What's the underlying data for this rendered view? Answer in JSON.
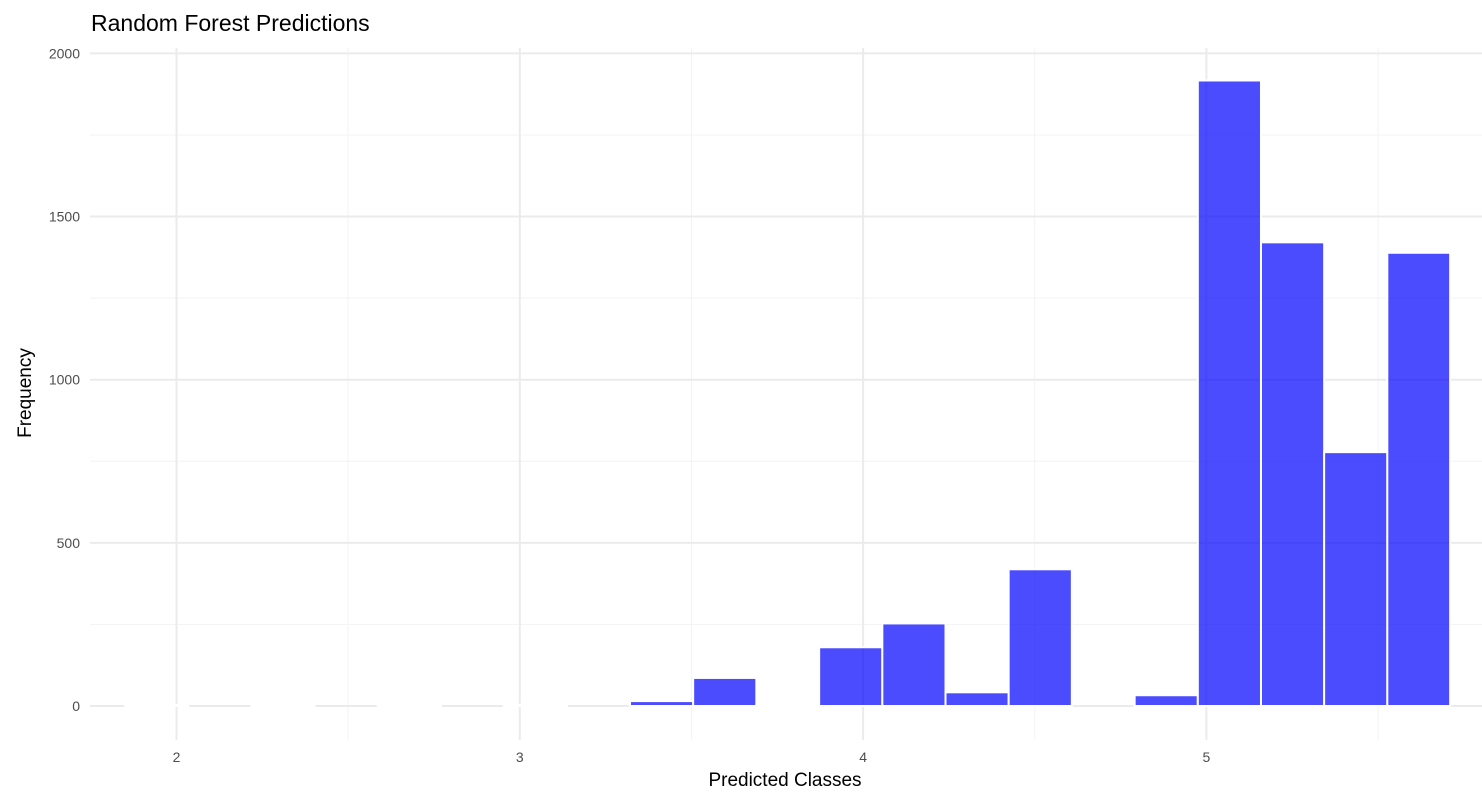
{
  "chart_data": {
    "type": "bar",
    "title": "Random Forest Predictions",
    "xlabel": "Predicted Classes",
    "ylabel": "Frequency",
    "xlim": [
      1.75,
      5.75
    ],
    "ylim": [
      -80,
      2030
    ],
    "x_ticks": [
      "2",
      "3",
      "4",
      "5"
    ],
    "y_ticks": [
      "0",
      "500",
      "1000",
      "1500",
      "2000"
    ],
    "grid": true,
    "bar_color": "#0000FF",
    "bar_opacity": 0.7,
    "bar_border": "#ffffff",
    "bins": [
      {
        "x0": 1.667,
        "x1": 1.851,
        "count": 0
      },
      {
        "x0": 1.851,
        "x1": 2.034,
        "count": 2
      },
      {
        "x0": 2.034,
        "x1": 2.218,
        "count": 0
      },
      {
        "x0": 2.218,
        "x1": 2.402,
        "count": 1
      },
      {
        "x0": 2.402,
        "x1": 2.586,
        "count": 0
      },
      {
        "x0": 2.586,
        "x1": 2.77,
        "count": 1
      },
      {
        "x0": 2.77,
        "x1": 2.953,
        "count": 0
      },
      {
        "x0": 2.953,
        "x1": 3.137,
        "count": 4
      },
      {
        "x0": 3.137,
        "x1": 3.321,
        "count": 0
      },
      {
        "x0": 3.321,
        "x1": 3.505,
        "count": 15
      },
      {
        "x0": 3.505,
        "x1": 3.689,
        "count": 86
      },
      {
        "x0": 3.689,
        "x1": 3.872,
        "count": 4
      },
      {
        "x0": 3.872,
        "x1": 4.056,
        "count": 180
      },
      {
        "x0": 4.056,
        "x1": 4.24,
        "count": 253
      },
      {
        "x0": 4.24,
        "x1": 4.424,
        "count": 42
      },
      {
        "x0": 4.424,
        "x1": 4.608,
        "count": 419
      },
      {
        "x0": 4.608,
        "x1": 4.791,
        "count": 0
      },
      {
        "x0": 4.791,
        "x1": 4.975,
        "count": 33
      },
      {
        "x0": 4.975,
        "x1": 5.159,
        "count": 1917
      },
      {
        "x0": 5.159,
        "x1": 5.343,
        "count": 1421
      },
      {
        "x0": 5.343,
        "x1": 5.527,
        "count": 778
      },
      {
        "x0": 5.527,
        "x1": 5.71,
        "count": 1389
      }
    ]
  }
}
